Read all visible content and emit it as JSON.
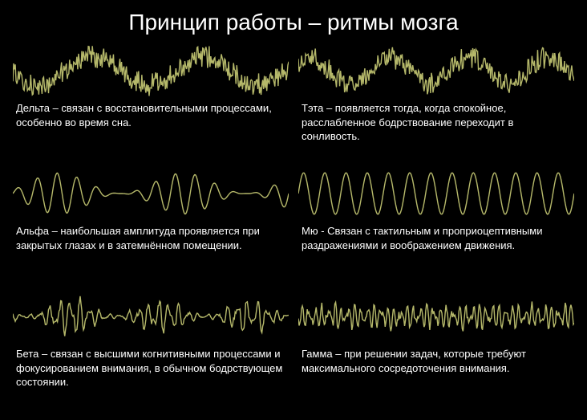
{
  "title": "Принцип работы – ритмы мозга",
  "background_color": "#000000",
  "text_color": "#ffffff",
  "title_fontsize": 28,
  "caption_fontsize": 13,
  "wave_stroke_color": "#b5b86a",
  "wave_stroke_width": 1.4,
  "waves": {
    "delta": {
      "label": "Дельта – связан с восстановительными процессами, особенно во время сна.",
      "type": "slow_irregular",
      "frequency_hz_approx": 1.5,
      "amplitude_rel": 0.9,
      "cycles_visible": 2.5,
      "viewbox_w": 340,
      "viewbox_h": 72
    },
    "theta": {
      "label": "Тэта – появляется тогда, когда спокойное, расслабленное бодрствование переходит в сонливость.",
      "type": "slow_irregular",
      "frequency_hz_approx": 5,
      "amplitude_rel": 0.85,
      "cycles_visible": 3.5,
      "viewbox_w": 340,
      "viewbox_h": 72
    },
    "alpha": {
      "label": "Альфа – наибольшая амплитуда проявляется при закрытых глазах и в затемнённом помещении.",
      "type": "rhythmic_varying",
      "frequency_hz_approx": 10,
      "amplitude_rel": 0.8,
      "cycles_visible": 14,
      "viewbox_w": 340,
      "viewbox_h": 72
    },
    "mu": {
      "label": "Мю -  Связан с тактильным и проприоцептивными раздражениями и воображением движения.",
      "type": "rhythmic_steady",
      "frequency_hz_approx": 10,
      "amplitude_rel": 0.85,
      "cycles_visible": 13,
      "viewbox_w": 340,
      "viewbox_h": 72
    },
    "beta": {
      "label": "Бета – связан с высшими когнитивными процессами и фокусированием внимания, в обычном бодрствующем состоянии.",
      "type": "fast_irregular",
      "frequency_hz_approx": 20,
      "amplitude_rel": 0.6,
      "cycles_visible": 28,
      "viewbox_w": 340,
      "viewbox_h": 72
    },
    "gamma": {
      "label": "Гамма – при решении задач, которые требуют максимального сосредоточения внимания.",
      "type": "fast_irregular_small",
      "frequency_hz_approx": 38,
      "amplitude_rel": 0.4,
      "cycles_visible": 42,
      "viewbox_w": 340,
      "viewbox_h": 72
    }
  },
  "layout": {
    "grid_cols": 2,
    "grid_rows": 3,
    "order": [
      "delta",
      "theta",
      "alpha",
      "mu",
      "beta",
      "gamma"
    ]
  }
}
